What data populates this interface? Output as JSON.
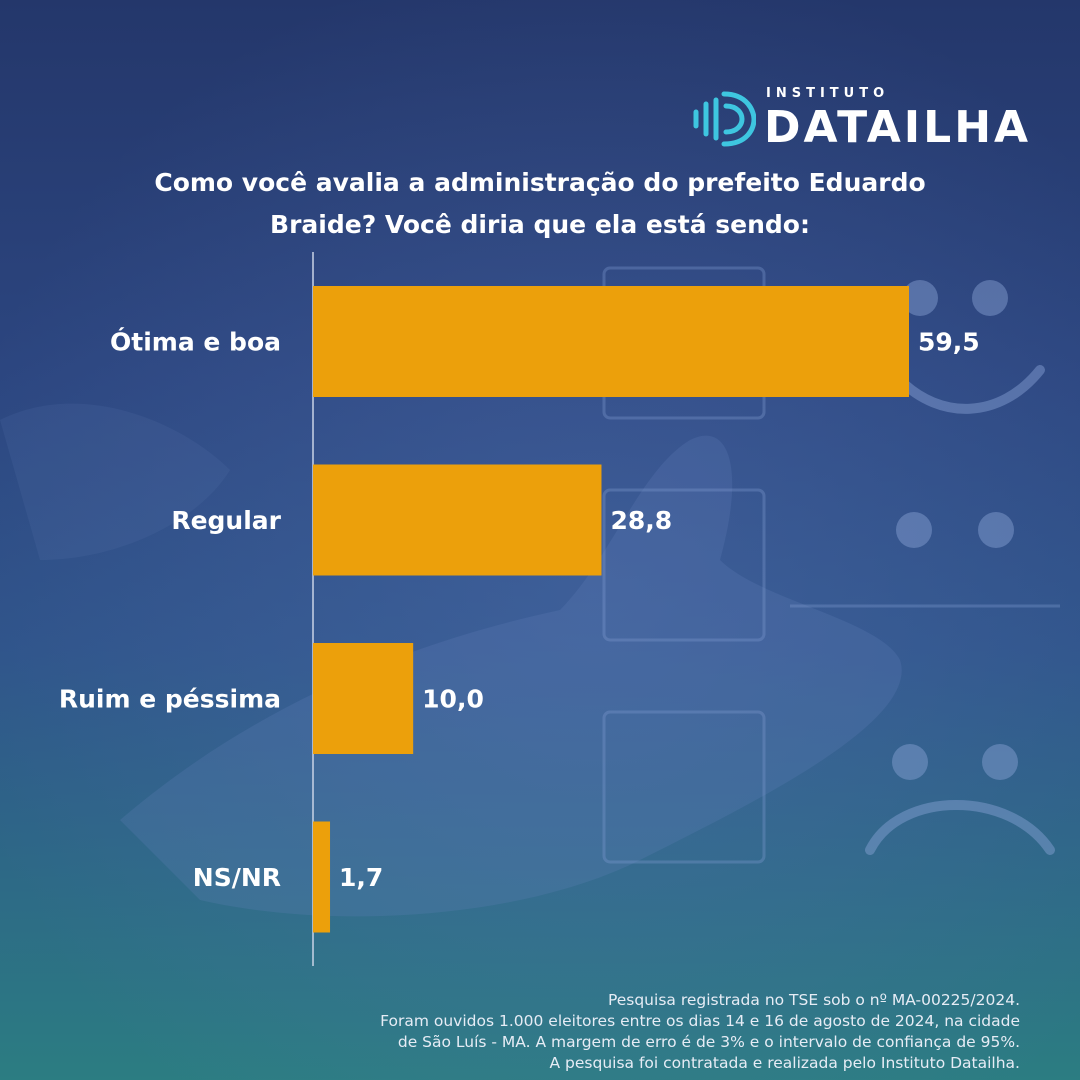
{
  "brand": {
    "small": "INSTITUTO",
    "name": "DATAILHA",
    "accent": "#3ec6e0"
  },
  "question": {
    "line1": "Como você avalia a administração do prefeito Eduardo",
    "line2": "Braide? Você diria que ela está sendo:"
  },
  "chart_data": {
    "type": "bar",
    "orientation": "horizontal",
    "categories": [
      "Ótima e boa",
      "Regular",
      "Ruim e péssima",
      "NS/NR"
    ],
    "values": [
      59.5,
      28.8,
      10.0,
      1.7
    ],
    "value_labels": [
      "59,5",
      "28,8",
      "10,0",
      "1,7"
    ],
    "bar_color": "#eca00b",
    "xlim": [
      0,
      60
    ],
    "grid": false
  },
  "footer": {
    "line1": "Pesquisa registrada no TSE sob o nº MA-00225/2024.",
    "line2": "Foram ouvidos 1.000 eleitores entre os dias 14 e 16 de agosto de 2024, na cidade",
    "line3": "de São Luís - MA. A margem de erro é de 3% e o intervalo de confiança de 95%.",
    "line4": "A pesquisa foi contratada e realizada pelo Instituto Datailha."
  }
}
